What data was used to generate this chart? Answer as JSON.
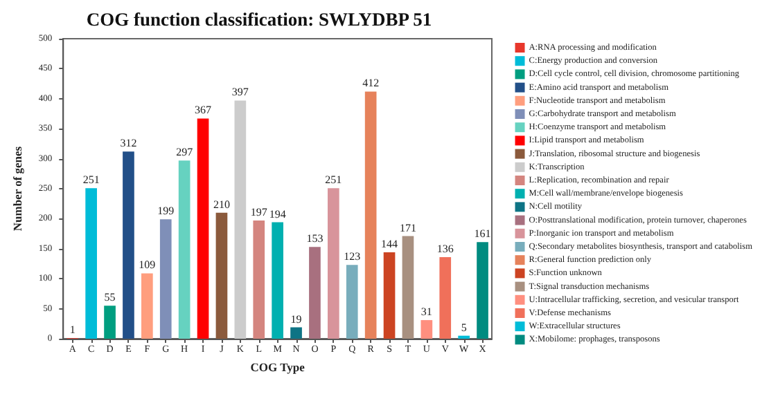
{
  "chart_data": {
    "type": "bar",
    "title": "COG function classification: SWLYDBP 51",
    "xlabel": "COG Type",
    "ylabel": "Number of genes",
    "categories": [
      "A",
      "C",
      "D",
      "E",
      "F",
      "G",
      "H",
      "I",
      "J",
      "K",
      "L",
      "M",
      "N",
      "O",
      "P",
      "Q",
      "R",
      "S",
      "T",
      "U",
      "V",
      "W",
      "X"
    ],
    "stacked": true,
    "data_labels": true,
    "legend": "right",
    "grid": false,
    "ylim": [
      0,
      500
    ],
    "yticks": [
      0,
      50,
      100,
      150,
      200,
      250,
      300,
      350,
      400,
      450,
      500
    ],
    "series": [
      {
        "name": "A:RNA processing and modification",
        "color": "#e8372b",
        "values": [
          1,
          null,
          null,
          null,
          null,
          null,
          null,
          null,
          null,
          null,
          null,
          null,
          null,
          null,
          null,
          null,
          null,
          null,
          null,
          null,
          null,
          null,
          null
        ]
      },
      {
        "name": "C:Energy production and conversion",
        "color": "#00bcd8",
        "values": [
          null,
          251,
          null,
          null,
          null,
          null,
          null,
          null,
          null,
          null,
          null,
          null,
          null,
          null,
          null,
          null,
          null,
          null,
          null,
          null,
          null,
          null,
          null
        ]
      },
      {
        "name": "D:Cell cycle control, cell division, chromosome partitioning",
        "color": "#009e80",
        "values": [
          null,
          null,
          55,
          null,
          null,
          null,
          null,
          null,
          null,
          null,
          null,
          null,
          null,
          null,
          null,
          null,
          null,
          null,
          null,
          null,
          null,
          null,
          null
        ]
      },
      {
        "name": "E:Amino acid transport and metabolism",
        "color": "#224f88",
        "values": [
          null,
          null,
          null,
          312,
          null,
          null,
          null,
          null,
          null,
          null,
          null,
          null,
          null,
          null,
          null,
          null,
          null,
          null,
          null,
          null,
          null,
          null,
          null
        ]
      },
      {
        "name": "F:Nucleotide transport and metabolism",
        "color": "#ff9e7e",
        "values": [
          null,
          null,
          null,
          null,
          109,
          null,
          null,
          null,
          null,
          null,
          null,
          null,
          null,
          null,
          null,
          null,
          null,
          null,
          null,
          null,
          null,
          null,
          null
        ]
      },
      {
        "name": "G:Carbohydrate transport and metabolism",
        "color": "#7f8fb8",
        "values": [
          null,
          null,
          null,
          null,
          null,
          199,
          null,
          null,
          null,
          null,
          null,
          null,
          null,
          null,
          null,
          null,
          null,
          null,
          null,
          null,
          null,
          null,
          null
        ]
      },
      {
        "name": "H:Coenzyme transport and metabolism",
        "color": "#66d2c0",
        "values": [
          null,
          null,
          null,
          null,
          null,
          null,
          297,
          null,
          null,
          null,
          null,
          null,
          null,
          null,
          null,
          null,
          null,
          null,
          null,
          null,
          null,
          null,
          null
        ]
      },
      {
        "name": "I:Lipid transport and metabolism",
        "color": "#ff0000",
        "values": [
          null,
          null,
          null,
          null,
          null,
          null,
          null,
          367,
          null,
          null,
          null,
          null,
          null,
          null,
          null,
          null,
          null,
          null,
          null,
          null,
          null,
          null,
          null
        ]
      },
      {
        "name": "J:Translation, ribosomal structure and biogenesis",
        "color": "#8b5a3c",
        "values": [
          null,
          null,
          null,
          null,
          null,
          null,
          null,
          null,
          210,
          null,
          null,
          null,
          null,
          null,
          null,
          null,
          null,
          null,
          null,
          null,
          null,
          null,
          null
        ]
      },
      {
        "name": "K:Transcription",
        "color": "#cccccc",
        "values": [
          null,
          null,
          null,
          null,
          null,
          null,
          null,
          null,
          null,
          397,
          null,
          null,
          null,
          null,
          null,
          null,
          null,
          null,
          null,
          null,
          null,
          null,
          null
        ]
      },
      {
        "name": "L:Replication, recombination and repair",
        "color": "#d4857f",
        "values": [
          null,
          null,
          null,
          null,
          null,
          null,
          null,
          null,
          null,
          null,
          197,
          null,
          null,
          null,
          null,
          null,
          null,
          null,
          null,
          null,
          null,
          null,
          null
        ]
      },
      {
        "name": "M:Cell wall/membrane/envelope biogenesis",
        "color": "#00b0b0",
        "values": [
          null,
          null,
          null,
          null,
          null,
          null,
          null,
          null,
          null,
          null,
          null,
          194,
          null,
          null,
          null,
          null,
          null,
          null,
          null,
          null,
          null,
          null,
          null
        ]
      },
      {
        "name": "N:Cell motility",
        "color": "#0e7485",
        "values": [
          null,
          null,
          null,
          null,
          null,
          null,
          null,
          null,
          null,
          null,
          null,
          null,
          19,
          null,
          null,
          null,
          null,
          null,
          null,
          null,
          null,
          null,
          null
        ]
      },
      {
        "name": "O:Posttranslational modification, protein turnover, chaperones",
        "color": "#a8707f",
        "values": [
          null,
          null,
          null,
          null,
          null,
          null,
          null,
          null,
          null,
          null,
          null,
          null,
          null,
          153,
          null,
          null,
          null,
          null,
          null,
          null,
          null,
          null,
          null
        ]
      },
      {
        "name": "P:Inorganic ion transport and metabolism",
        "color": "#d8949b",
        "values": [
          null,
          null,
          null,
          null,
          null,
          null,
          null,
          null,
          null,
          null,
          null,
          null,
          null,
          null,
          251,
          null,
          null,
          null,
          null,
          null,
          null,
          null,
          null
        ]
      },
      {
        "name": "Q:Secondary metabolites biosynthesis, transport and catabolism",
        "color": "#78adbc",
        "values": [
          null,
          null,
          null,
          null,
          null,
          null,
          null,
          null,
          null,
          null,
          null,
          null,
          null,
          null,
          null,
          123,
          null,
          null,
          null,
          null,
          null,
          null,
          null
        ]
      },
      {
        "name": "R:General function prediction only",
        "color": "#e6825b",
        "values": [
          null,
          null,
          null,
          null,
          null,
          null,
          null,
          null,
          null,
          null,
          null,
          null,
          null,
          null,
          null,
          null,
          412,
          null,
          null,
          null,
          null,
          null,
          null
        ]
      },
      {
        "name": "S:Function unknown",
        "color": "#cc4422",
        "values": [
          null,
          null,
          null,
          null,
          null,
          null,
          null,
          null,
          null,
          null,
          null,
          null,
          null,
          null,
          null,
          null,
          null,
          144,
          null,
          null,
          null,
          null,
          null
        ]
      },
      {
        "name": "T:Signal transduction mechanisms",
        "color": "#a89080",
        "values": [
          null,
          null,
          null,
          null,
          null,
          null,
          null,
          null,
          null,
          null,
          null,
          null,
          null,
          null,
          null,
          null,
          null,
          null,
          171,
          null,
          null,
          null,
          null
        ]
      },
      {
        "name": "U:Intracellular trafficking, secretion, and vesicular transport",
        "color": "#ff8f7f",
        "values": [
          null,
          null,
          null,
          null,
          null,
          null,
          null,
          null,
          null,
          null,
          null,
          null,
          null,
          null,
          null,
          null,
          null,
          null,
          null,
          31,
          null,
          null,
          null
        ]
      },
      {
        "name": "V:Defense mechanisms",
        "color": "#f0705a",
        "values": [
          null,
          null,
          null,
          null,
          null,
          null,
          null,
          null,
          null,
          null,
          null,
          null,
          null,
          null,
          null,
          null,
          null,
          null,
          null,
          null,
          136,
          null,
          null
        ]
      },
      {
        "name": "W:Extracellular structures",
        "color": "#00bcd8",
        "values": [
          null,
          null,
          null,
          null,
          null,
          null,
          null,
          null,
          null,
          null,
          null,
          null,
          null,
          null,
          null,
          null,
          null,
          null,
          null,
          null,
          null,
          5,
          null
        ]
      },
      {
        "name": "X:Mobilome: prophages, transposons",
        "color": "#008b80",
        "values": [
          null,
          null,
          null,
          null,
          null,
          null,
          null,
          null,
          null,
          null,
          null,
          null,
          null,
          null,
          null,
          null,
          null,
          null,
          null,
          null,
          null,
          null,
          161
        ]
      }
    ]
  }
}
